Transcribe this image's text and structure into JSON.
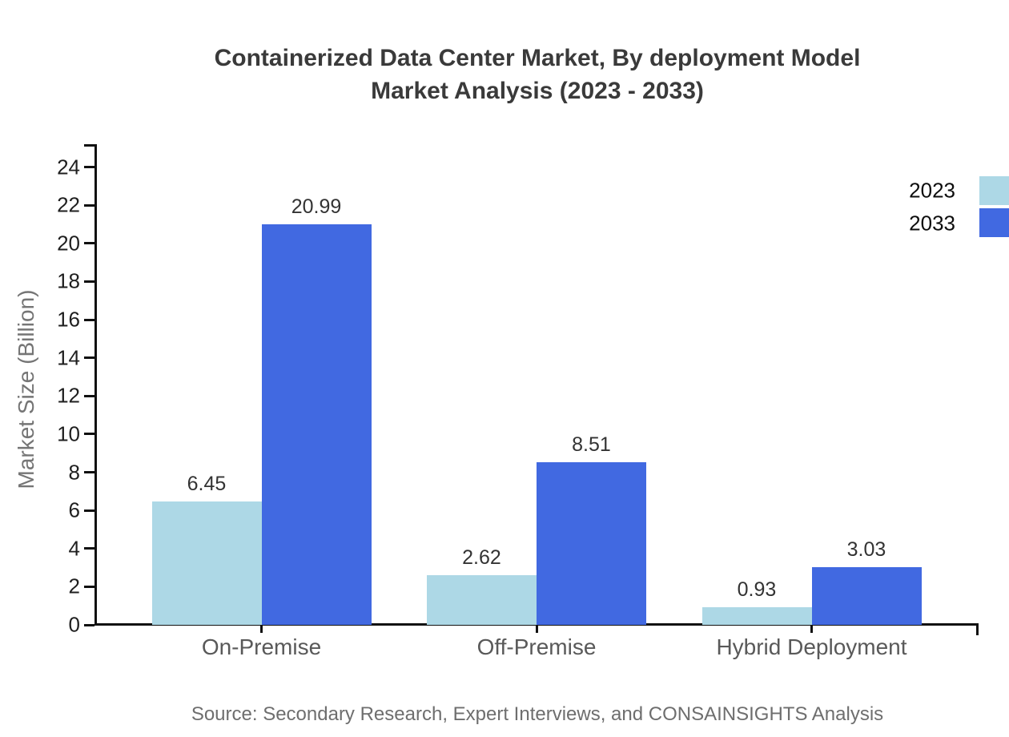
{
  "title": {
    "line1": "Containerized Data Center Market, By deployment Model",
    "line2": "Market Analysis (2023 - 2033)"
  },
  "source_note": "Source: Secondary Research, Expert Interviews, and CONSAINSIGHTS Analysis",
  "chart_data": {
    "type": "bar",
    "title": "Containerized Data Center Market, By deployment Model Market Analysis (2023 - 2033)",
    "categories": [
      "On-Premise",
      "Off-Premise",
      "Hybrid Deployment"
    ],
    "series": [
      {
        "name": "2023",
        "color": "#ADD8E6",
        "values": [
          6.45,
          2.62,
          0.93
        ]
      },
      {
        "name": "2033",
        "color": "#4169E1",
        "values": [
          20.99,
          8.51,
          3.03
        ]
      }
    ],
    "xlabel": "",
    "ylabel": "Market Size (Billion)",
    "ylim": [
      0,
      24
    ],
    "ytick_step": 2,
    "grid": "off",
    "value_labels": true,
    "legend_position": "top-right"
  }
}
